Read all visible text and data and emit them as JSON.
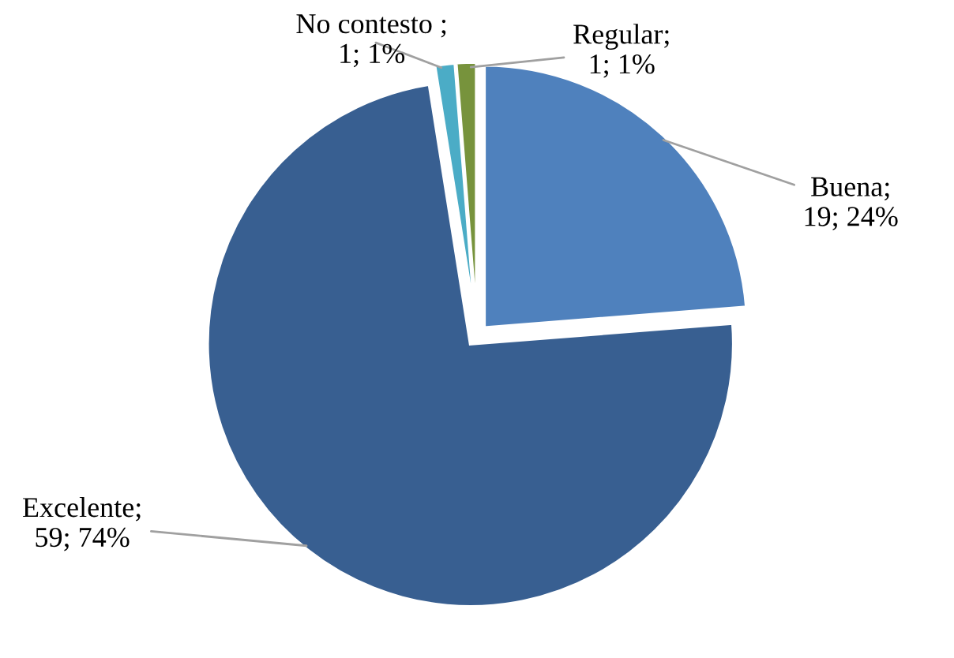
{
  "chart_data": {
    "type": "pie",
    "categories": [
      "Buena",
      "Excelente",
      "No contesto ",
      "Regular"
    ],
    "values": [
      19,
      59,
      1,
      1
    ],
    "value_labels": [
      ";\n19; 24%",
      ";\n59; 74%",
      ";\n1; 1%",
      ";\n1; 1%"
    ],
    "colors": [
      "#4f81bd",
      "#385f91",
      "#4bacc6",
      "#77933c"
    ],
    "legend": false
  }
}
